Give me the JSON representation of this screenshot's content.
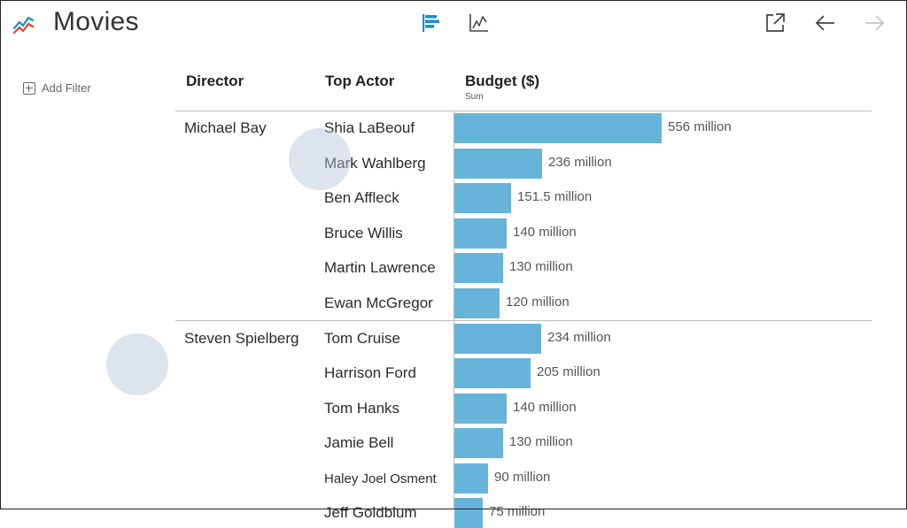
{
  "header": {
    "title": "Movies",
    "icons": [
      "line-chart-logo-icon",
      "bar-chart-view-icon",
      "line-chart-view-icon",
      "external-link-icon",
      "arrow-left-icon",
      "arrow-right-icon"
    ],
    "accent_color": "#1b8fc6"
  },
  "sidebar": {
    "add_filter_label": "Add Filter"
  },
  "columns": {
    "director": "Director",
    "actor": "Top Actor",
    "budget": "Budget ($)",
    "budget_sub": "Sum"
  },
  "bar_color": "#66b4d9",
  "groups": [
    {
      "director": "Michael Bay",
      "rows": [
        {
          "actor": "Shia LaBeouf",
          "value": 556,
          "label": "556 million"
        },
        {
          "actor": "Mark Wahlberg",
          "value": 236,
          "label": "236 million"
        },
        {
          "actor": "Ben Affleck",
          "value": 151.5,
          "label": "151.5 million"
        },
        {
          "actor": "Bruce Willis",
          "value": 140,
          "label": "140 million"
        },
        {
          "actor": "Martin Lawrence",
          "value": 130,
          "label": "130 million"
        },
        {
          "actor": "Ewan McGregor",
          "value": 120,
          "label": "120 million"
        }
      ]
    },
    {
      "director": "Steven Spielberg",
      "rows": [
        {
          "actor": "Tom Cruise",
          "value": 234,
          "label": "234 million"
        },
        {
          "actor": "Harrison Ford",
          "value": 205,
          "label": "205 million"
        },
        {
          "actor": "Tom Hanks",
          "value": 140,
          "label": "140 million"
        },
        {
          "actor": "Jamie Bell",
          "value": 130,
          "label": "130 million"
        },
        {
          "actor": "Haley Joel Osment",
          "value": 90,
          "label": "90 million"
        },
        {
          "actor": "Jeff Goldblum",
          "value": 75,
          "label": "75 million"
        }
      ]
    }
  ]
}
